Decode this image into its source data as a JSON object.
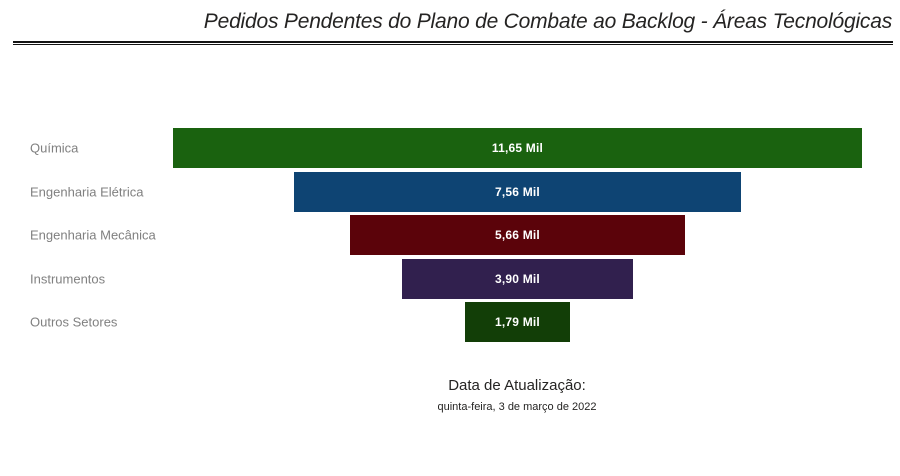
{
  "title": "Pedidos Pendentes do Plano de Combate ao Backlog - Áreas Tecnológicas",
  "footer": {
    "label": "Data de Atualização:",
    "date": "quinta-feira, 3 de março de 2022"
  },
  "colors": {
    "title_text": "#252423",
    "title_rule": "#141414",
    "category_label": "#808080",
    "value_label": "#ffffff",
    "background": "#ffffff"
  },
  "chart_data": {
    "type": "bar",
    "variant": "funnel",
    "orientation": "horizontal",
    "title": "Pedidos Pendentes do Plano de Combate ao Backlog - Áreas Tecnológicas",
    "unit": "Mil",
    "categories": [
      "Química",
      "Engenharia Elétrica",
      "Engenharia Mecânica",
      "Instrumentos",
      "Outros Setores"
    ],
    "values": [
      11650,
      7560,
      5660,
      3900,
      1790
    ],
    "value_labels": [
      "11,65 Mil",
      "7,56 Mil",
      "5,66 Mil",
      "3,90 Mil",
      "1,79 Mil"
    ],
    "bar_colors": [
      "#1a620f",
      "#0e4473",
      "#5b030a",
      "#31204e",
      "#123e07"
    ],
    "legend": false,
    "grid": false,
    "xlabel": "",
    "ylabel": ""
  }
}
